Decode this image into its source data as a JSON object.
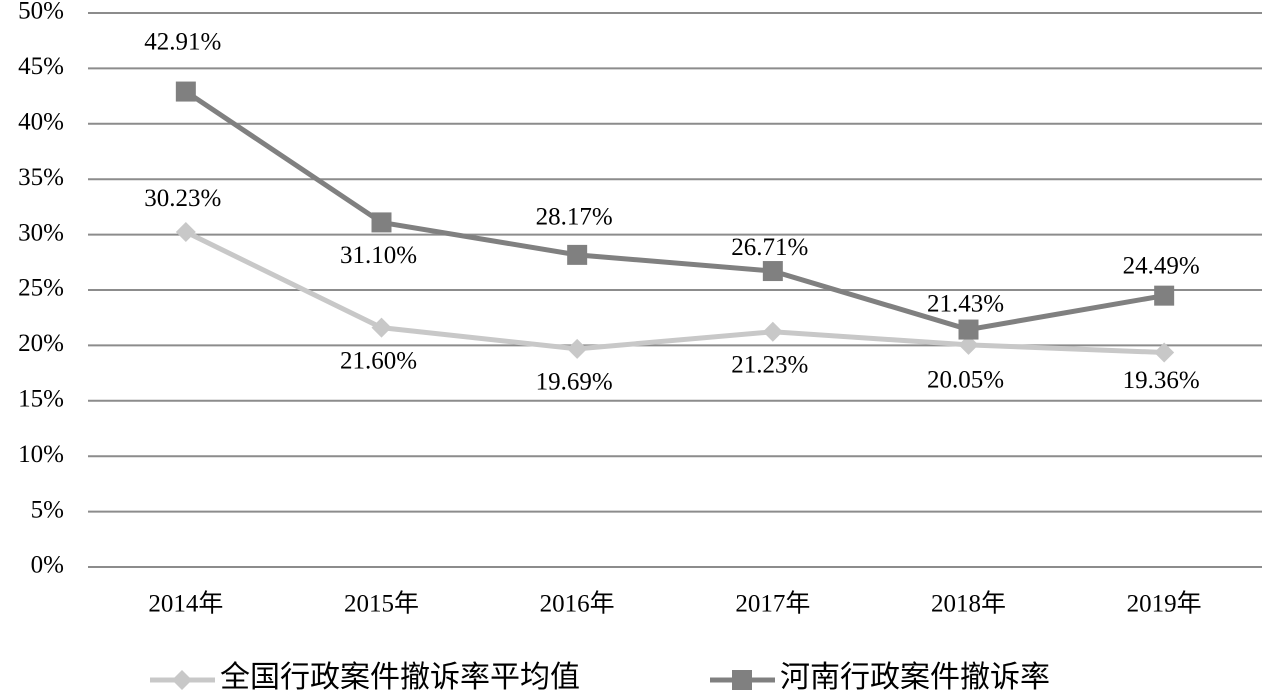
{
  "chart_data": {
    "type": "line",
    "categories": [
      "2014年",
      "2015年",
      "2016年",
      "2017年",
      "2018年",
      "2019年"
    ],
    "series": [
      {
        "name": "全国行政案件撤诉率平均值",
        "color": "#c8c8c8",
        "marker": "diamond",
        "values": [
          30.23,
          21.6,
          19.69,
          21.23,
          20.05,
          19.36
        ],
        "value_labels": [
          "30.23%",
          "21.60%",
          "19.69%",
          "21.23%",
          "20.05%",
          "19.36%"
        ]
      },
      {
        "name": "河南行政案件撤诉率",
        "color": "#808080",
        "marker": "square",
        "values": [
          42.91,
          31.1,
          28.17,
          26.71,
          21.43,
          24.49
        ],
        "value_labels": [
          "42.91%",
          "31.10%",
          "28.17%",
          "26.71%",
          "21.43%",
          "24.49%"
        ]
      }
    ],
    "ylim": [
      0,
      50
    ],
    "yticks": [
      {
        "value": 0,
        "label": "0%"
      },
      {
        "value": 5,
        "label": "5%"
      },
      {
        "value": 10,
        "label": "10%"
      },
      {
        "value": 15,
        "label": "15%"
      },
      {
        "value": 20,
        "label": "20%"
      },
      {
        "value": 25,
        "label": "25%"
      },
      {
        "value": 30,
        "label": "30%"
      },
      {
        "value": 35,
        "label": "35%"
      },
      {
        "value": 40,
        "label": "40%"
      },
      {
        "value": 45,
        "label": "45%"
      },
      {
        "value": 50,
        "label": "50%"
      }
    ],
    "grid": true,
    "legend": "bottom"
  }
}
